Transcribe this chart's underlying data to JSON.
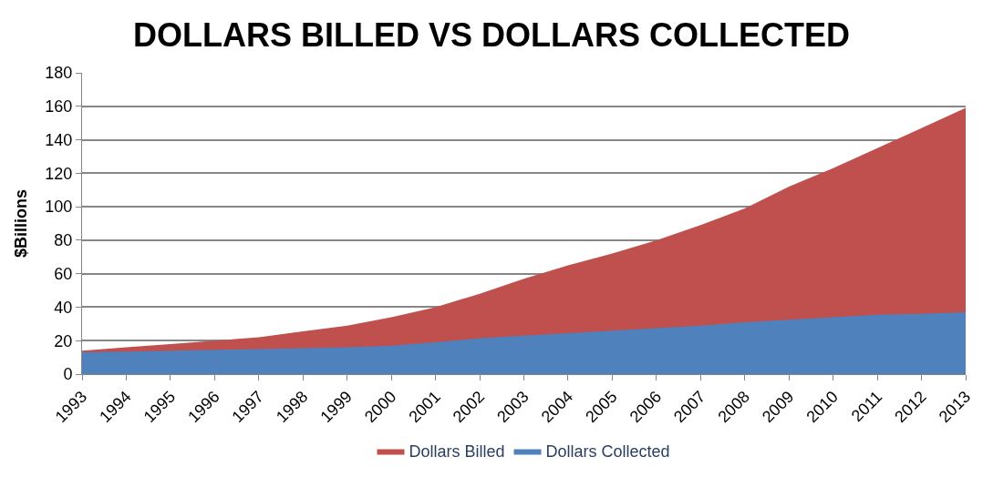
{
  "chart_data": {
    "type": "area",
    "title": "DOLLARS BILLED VS DOLLARS COLLECTED",
    "ylabel": "$Billions",
    "categories": [
      "1993",
      "1994",
      "1995",
      "1996",
      "1997",
      "1998",
      "1999",
      "2000",
      "2001",
      "2002",
      "2003",
      "2004",
      "2005",
      "2006",
      "2007",
      "2008",
      "2009",
      "2010",
      "2011",
      "2012",
      "2013"
    ],
    "series": [
      {
        "name": "Dollars Billed",
        "color": "#c0504d",
        "values": [
          14,
          16,
          18,
          20,
          22,
          25.5,
          29,
          34,
          40,
          48,
          57,
          65,
          72,
          80,
          89,
          99,
          112,
          123,
          135,
          147,
          159
        ]
      },
      {
        "name": "Dollars Collected",
        "color": "#4f81bd",
        "values": [
          13,
          13.5,
          14,
          14.5,
          15,
          15.5,
          16,
          17,
          19,
          21.5,
          23,
          24.5,
          26,
          27.5,
          29,
          31,
          32.5,
          34,
          35.5,
          36,
          37
        ]
      }
    ],
    "ylim": [
      0,
      180
    ],
    "yticks": [
      0,
      20,
      40,
      60,
      80,
      100,
      120,
      140,
      160,
      180
    ],
    "grid": "y",
    "legend": "bottom"
  }
}
